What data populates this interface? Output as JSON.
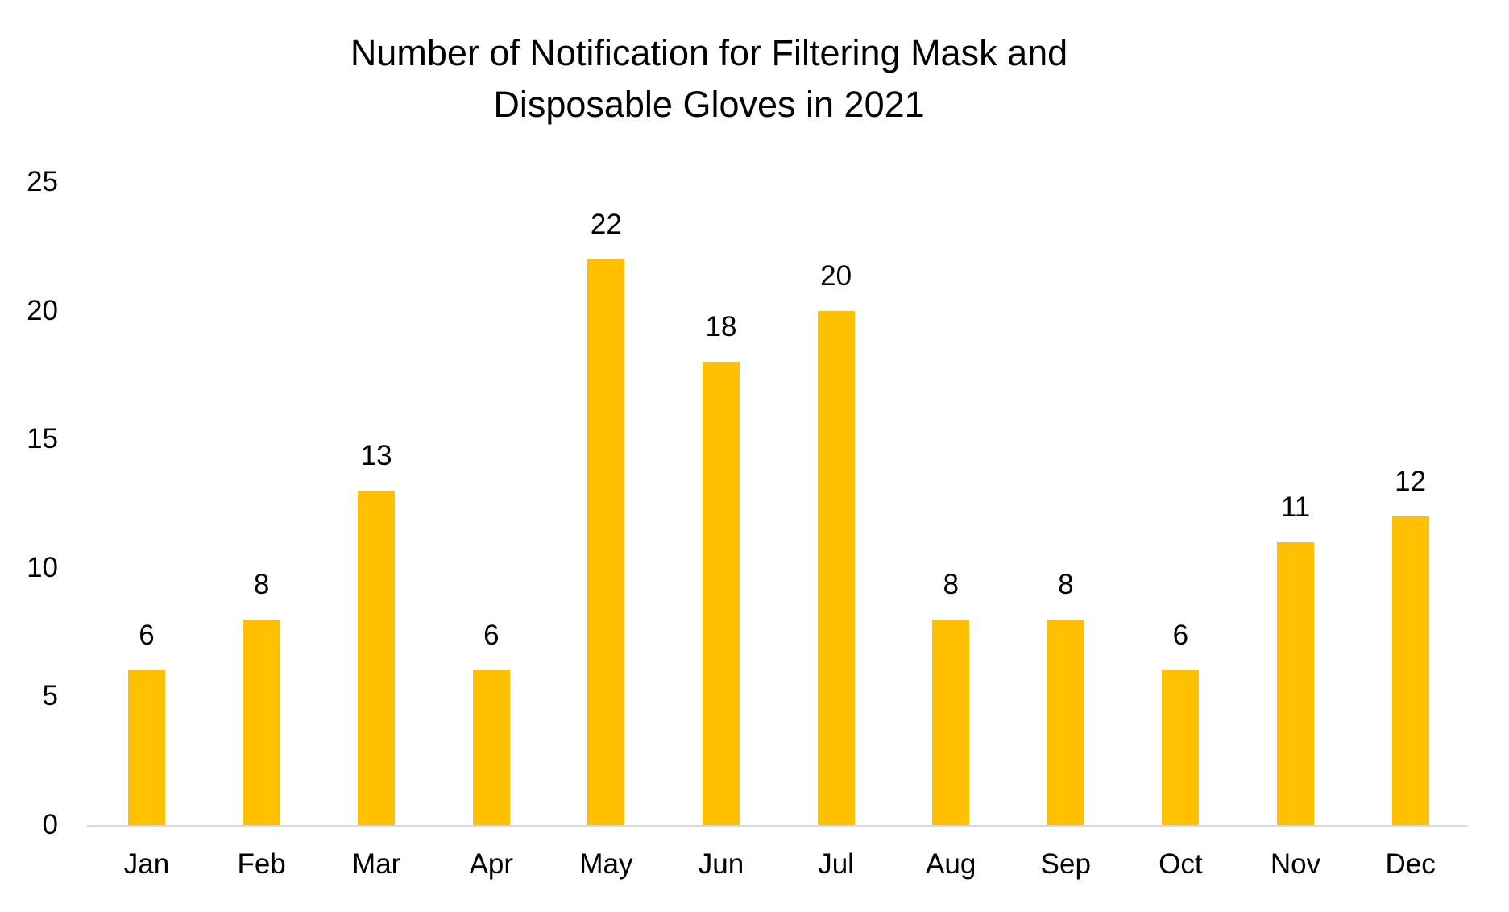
{
  "chart_data": {
    "type": "bar",
    "title": "Number of Notification for Filtering Mask and Disposable Gloves in 2021",
    "title_lines": [
      "Number of Notification for Filtering Mask and",
      "Disposable Gloves in 2021"
    ],
    "categories": [
      "Jan",
      "Feb",
      "Mar",
      "Apr",
      "May",
      "Jun",
      "Jul",
      "Aug",
      "Sep",
      "Oct",
      "Nov",
      "Dec"
    ],
    "values": [
      6,
      8,
      13,
      6,
      22,
      18,
      20,
      8,
      8,
      6,
      11,
      12
    ],
    "xlabel": "",
    "ylabel": "",
    "y_ticks": [
      0,
      5,
      10,
      15,
      20,
      25
    ],
    "ylim": [
      0,
      25
    ],
    "grid": false,
    "legend_position": "none",
    "data_labels": true,
    "colors": {
      "bar": "#FFC000",
      "axis_line": "#D9D9D9",
      "text": "#000000",
      "background": "#FFFFFF"
    }
  }
}
